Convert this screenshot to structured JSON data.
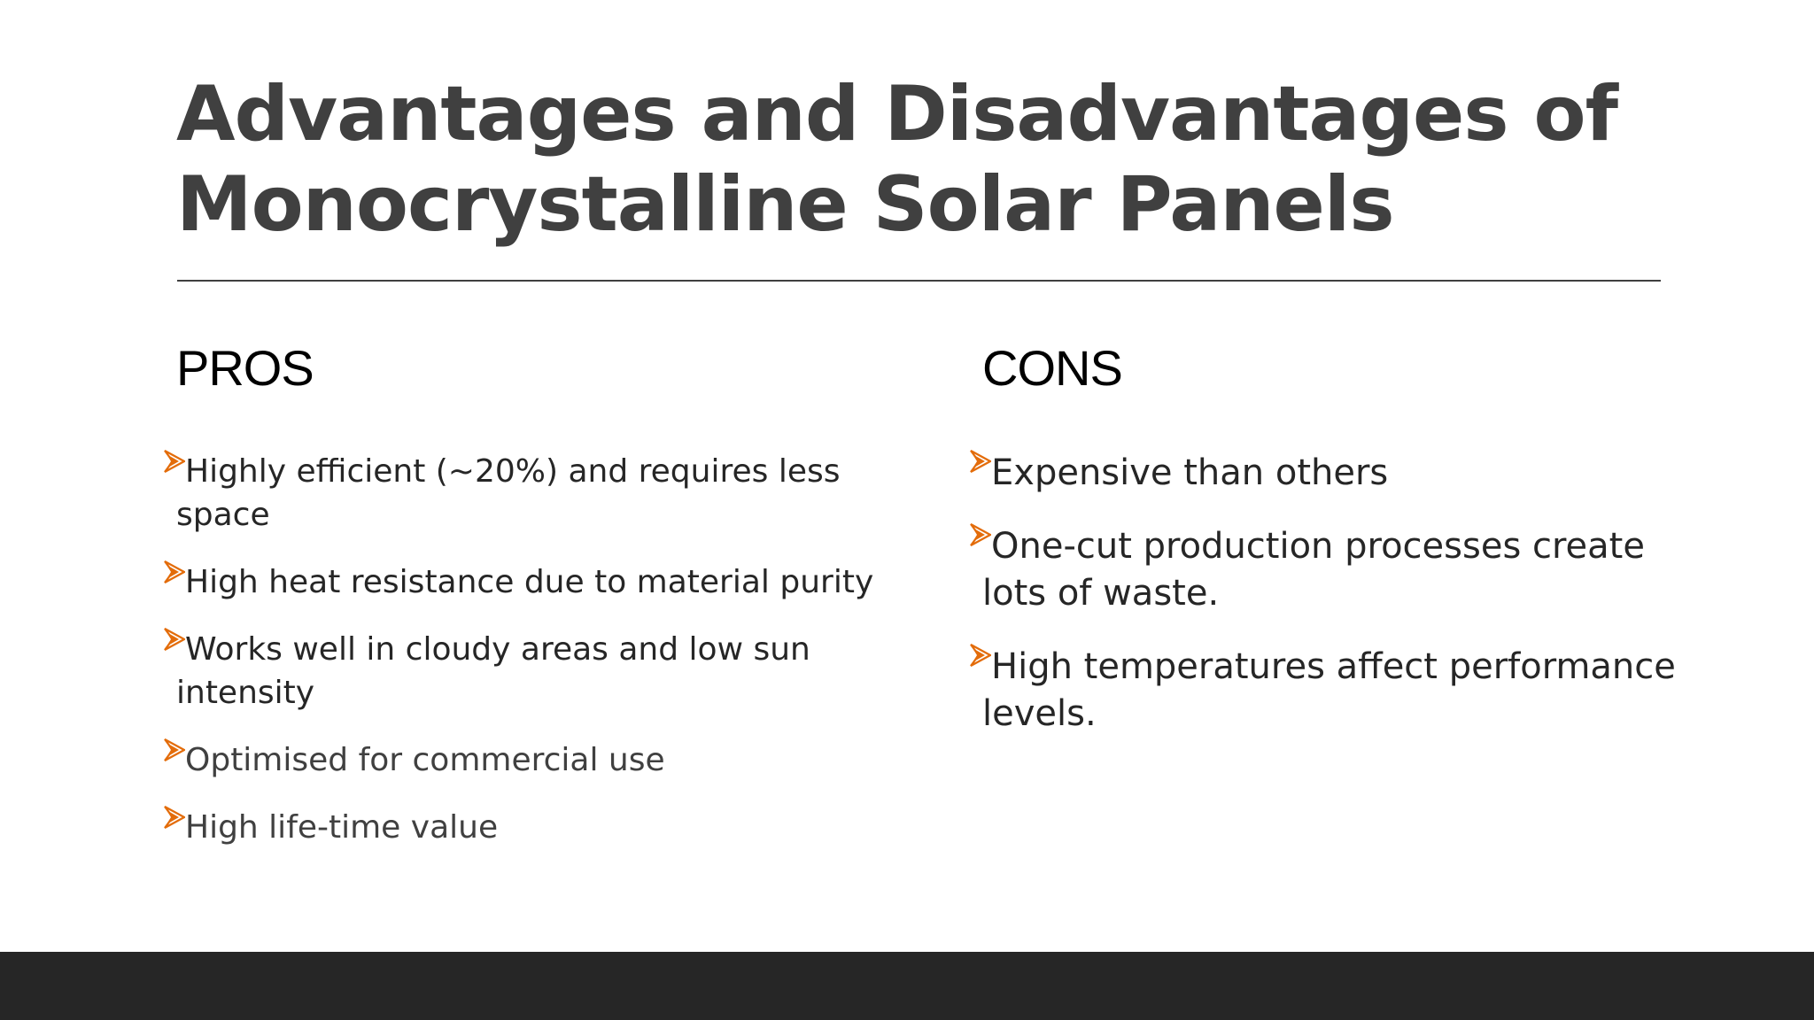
{
  "slide": {
    "title": "Advantages and Disadvantages of Monocrystalline Solar Panels"
  },
  "pros": {
    "heading": "PROS",
    "items": [
      "Highly efficient (~20%) and requires less space",
      "High heat resistance due to material purity",
      "Works well in cloudy areas and low sun intensity",
      "Optimised for commercial use",
      "High life-time value"
    ]
  },
  "cons": {
    "heading": "CONS",
    "items": [
      "Expensive than others",
      "One-cut production processes create lots of waste.",
      "High temperatures affect performance levels."
    ]
  },
  "colors": {
    "title": "#404040",
    "bullet_accent": "#E36C0A",
    "footer_bar": "#262626",
    "text": "#262626"
  },
  "icons": {
    "bullet": "orange-arrowhead-bullet-icon"
  }
}
